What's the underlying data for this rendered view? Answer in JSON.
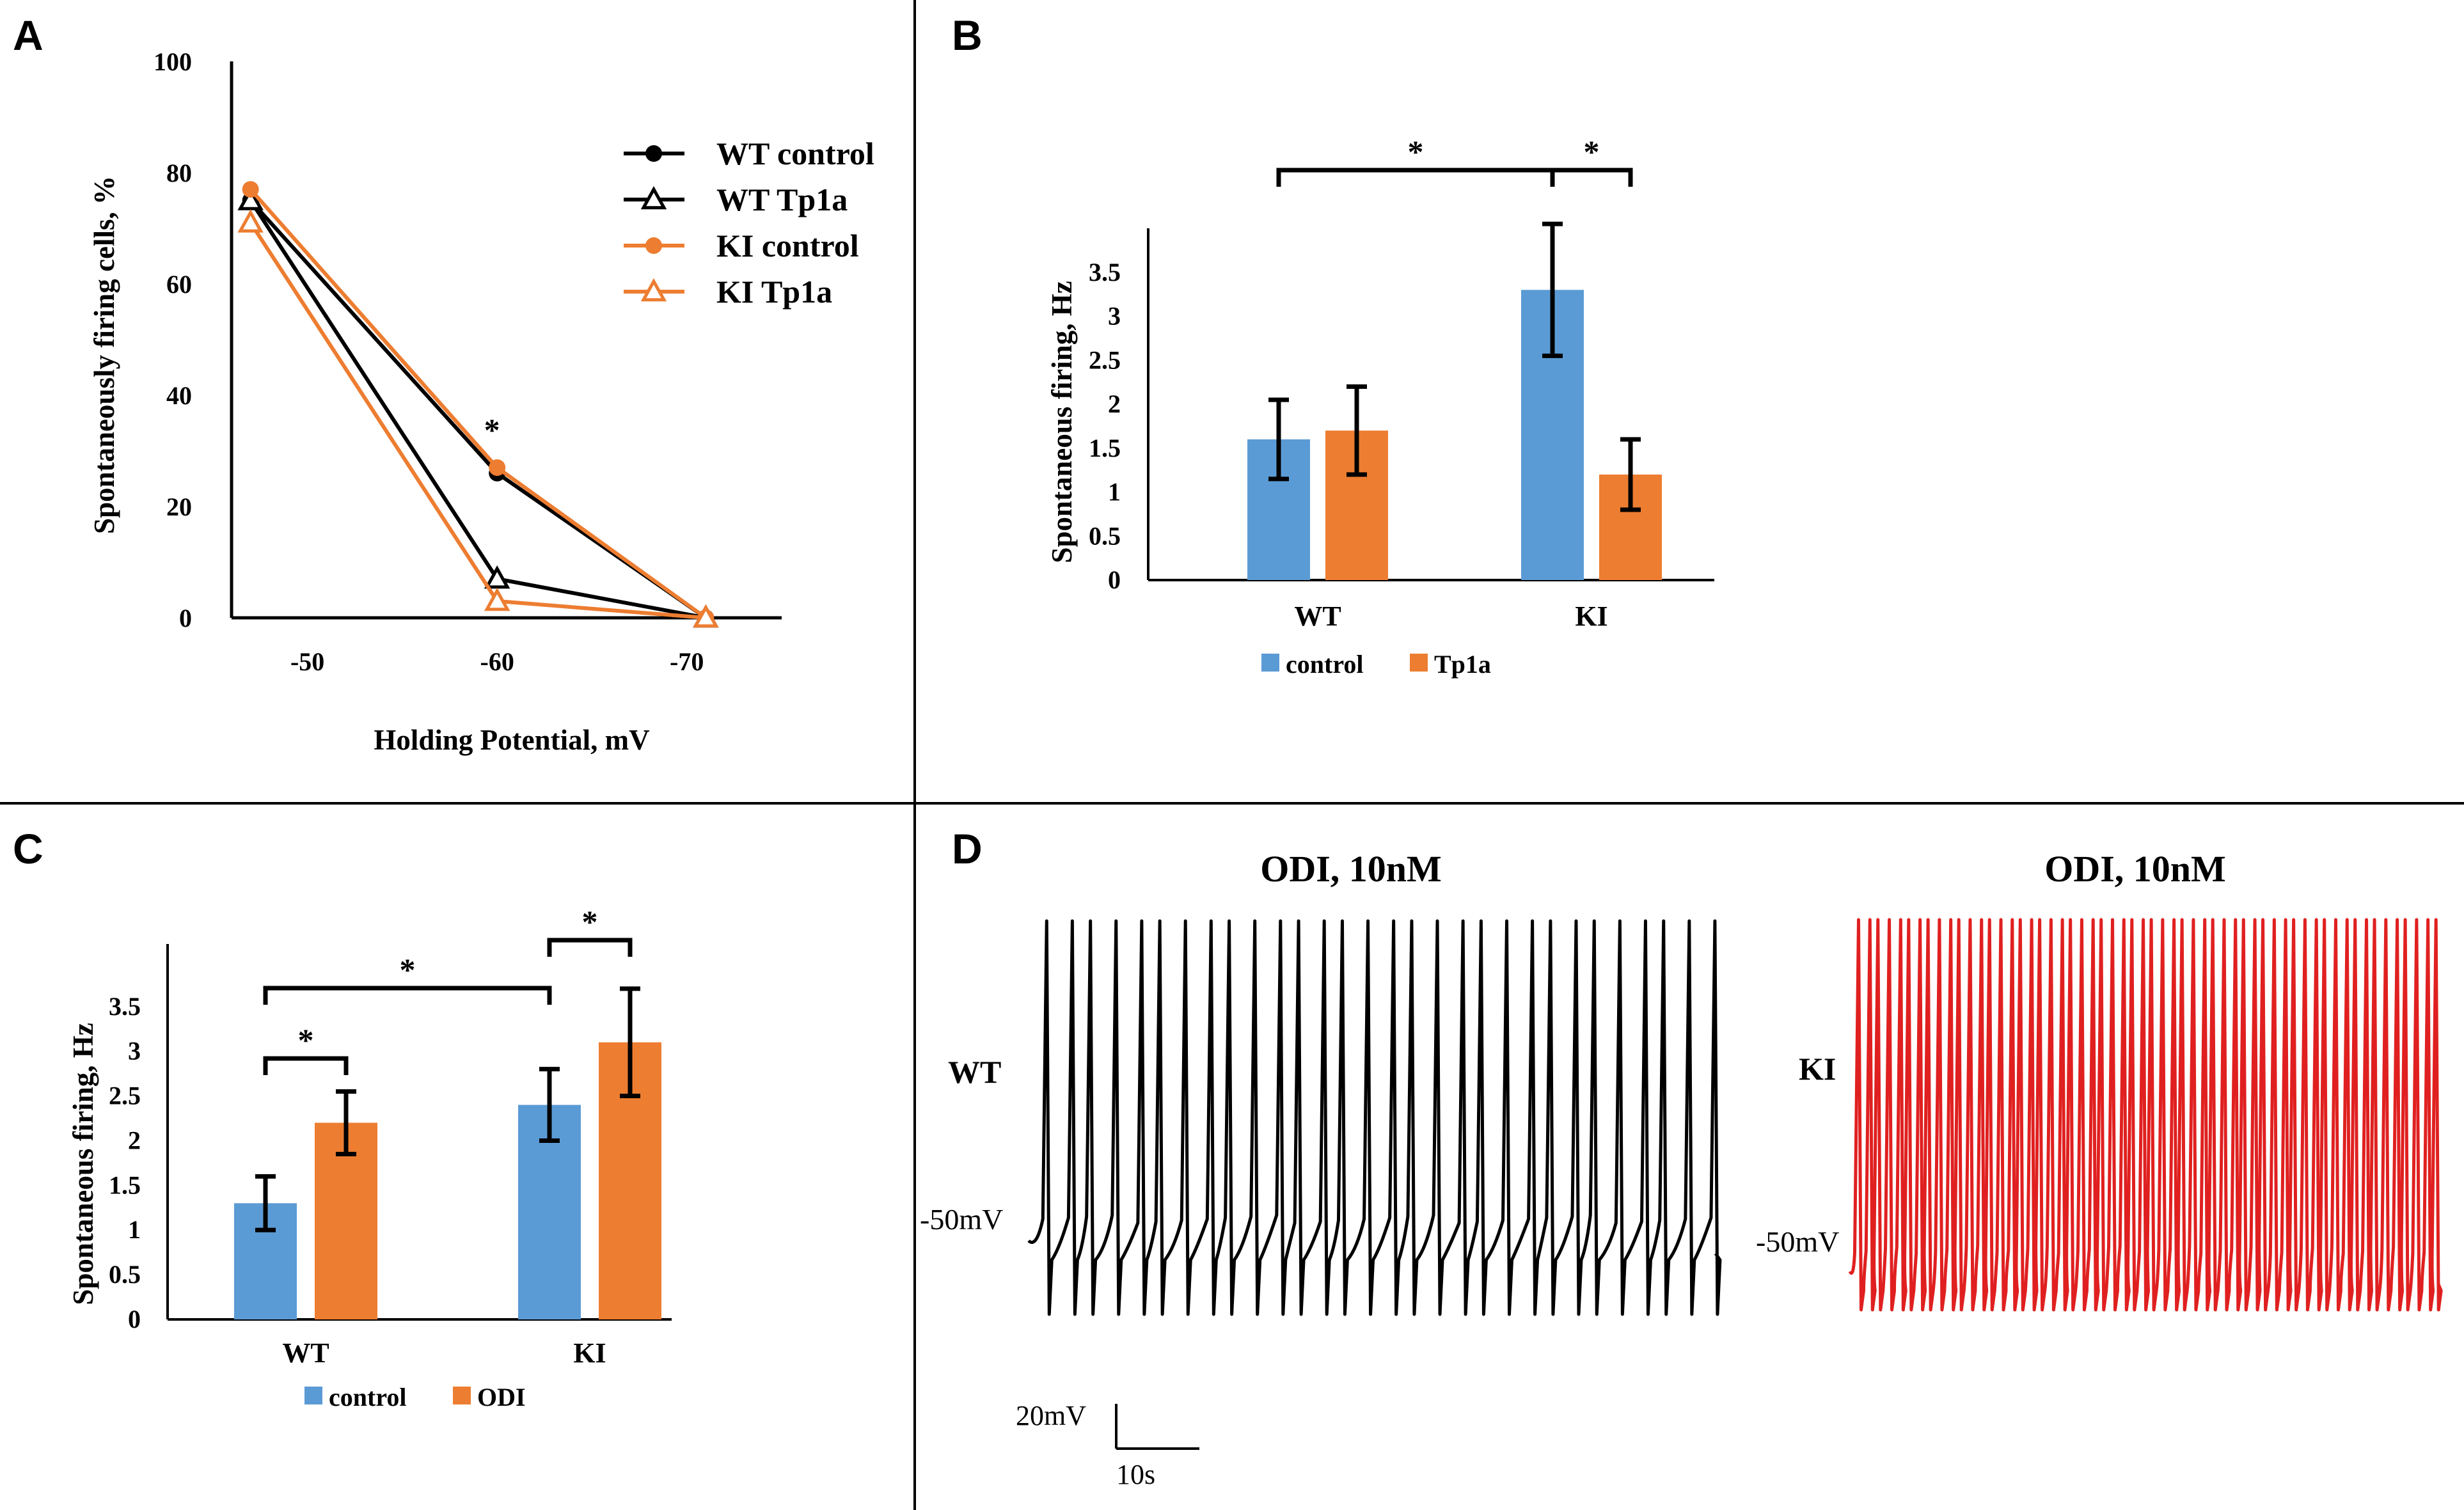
{
  "colors": {
    "wt_control": "#000000",
    "ki_control": "#ED7D31",
    "bar_control": "#5B9BD5",
    "bar_treatment": "#ED7D31",
    "wt_trace": "#000000",
    "ki_trace": "#E02020"
  },
  "chart_data": [
    {
      "panel": "A",
      "type": "line",
      "xlabel": "Holding Potential, mV",
      "ylabel": "Spontaneously firing cells, %",
      "x": [
        -47,
        -60,
        -71
      ],
      "x_tick_labels": [
        "-50",
        "-60",
        "-70"
      ],
      "x_ticks": [
        -50,
        -60,
        -70
      ],
      "y_tick_labels": [
        "0",
        "20",
        "40",
        "60",
        "80",
        "100"
      ],
      "y_ticks": [
        0,
        20,
        40,
        60,
        80,
        100
      ],
      "xlim": [
        -46,
        -75
      ],
      "ylim": [
        0,
        100
      ],
      "legend_position": "top-right",
      "series": [
        {
          "name": "WT control",
          "marker": "circle",
          "color": "#000000",
          "values": [
            75,
            26,
            0
          ]
        },
        {
          "name": "WT Tp1a",
          "marker": "triangle",
          "color": "#000000",
          "values": [
            75,
            7,
            0
          ]
        },
        {
          "name": "KI control",
          "marker": "circle",
          "color": "#ED7D31",
          "values": [
            77,
            27,
            0
          ]
        },
        {
          "name": "KI Tp1a",
          "marker": "triangle",
          "color": "#ED7D31",
          "values": [
            71,
            3,
            0
          ]
        }
      ],
      "annotations": [
        {
          "text": "*",
          "x": -60,
          "y": 33
        }
      ]
    },
    {
      "panel": "B",
      "type": "bar",
      "ylabel": "Spontaneous firing, Hz",
      "categories": [
        "WT",
        "KI"
      ],
      "ylim": [
        0,
        4
      ],
      "y_ticks": [
        0,
        0.5,
        1,
        1.5,
        2,
        2.5,
        3,
        3.5
      ],
      "y_tick_labels": [
        "0",
        "0.5",
        "1",
        "1.5",
        "2",
        "2.5",
        "3",
        "3.5"
      ],
      "legend_position": "bottom",
      "series": [
        {
          "name": "control",
          "color": "#5B9BD5",
          "values": [
            1.6,
            3.3
          ],
          "errors": [
            0.45,
            0.75
          ]
        },
        {
          "name": "Tp1a",
          "color": "#ED7D31",
          "values": [
            1.7,
            1.2
          ],
          "errors": [
            0.5,
            0.4
          ]
        }
      ],
      "significance": [
        {
          "from": "WT control",
          "to": "KI control",
          "label": "*"
        },
        {
          "from": "KI control",
          "to": "KI Tp1a",
          "label": "*"
        }
      ]
    },
    {
      "panel": "C",
      "type": "bar",
      "ylabel": "Spontaneous firing, Hz",
      "categories": [
        "WT",
        "KI"
      ],
      "ylim": [
        0,
        4.2
      ],
      "y_ticks": [
        0,
        0.5,
        1,
        1.5,
        2,
        2.5,
        3,
        3.5
      ],
      "y_tick_labels": [
        "0",
        "0.5",
        "1",
        "1.5",
        "2",
        "2.5",
        "3",
        "3.5"
      ],
      "legend_position": "bottom",
      "series": [
        {
          "name": "control",
          "color": "#5B9BD5",
          "values": [
            1.3,
            2.4
          ],
          "errors": [
            0.3,
            0.4
          ]
        },
        {
          "name": "ODI",
          "color": "#ED7D31",
          "values": [
            2.2,
            3.1
          ],
          "errors": [
            0.35,
            0.6
          ]
        }
      ],
      "significance": [
        {
          "from": "WT control",
          "to": "WT ODI",
          "label": "*"
        },
        {
          "from": "WT control",
          "to": "KI control",
          "label": "*"
        },
        {
          "from": "KI control",
          "to": "KI ODI",
          "label": "*"
        }
      ]
    }
  ],
  "panels": {
    "a": {
      "letter": "A"
    },
    "b": {
      "letter": "B"
    },
    "c": {
      "letter": "C"
    },
    "d": {
      "letter": "D",
      "wt_title": "ODI, 10nM",
      "ki_title": "ODI, 10nM",
      "wt_label": "WT",
      "ki_label": "KI",
      "wt_voltage": "-50mV",
      "ki_voltage": "-50mV",
      "wt_spike_count": 30,
      "ki_spike_count": 58,
      "scale_voltage": "20mV",
      "scale_time": "10s"
    }
  }
}
